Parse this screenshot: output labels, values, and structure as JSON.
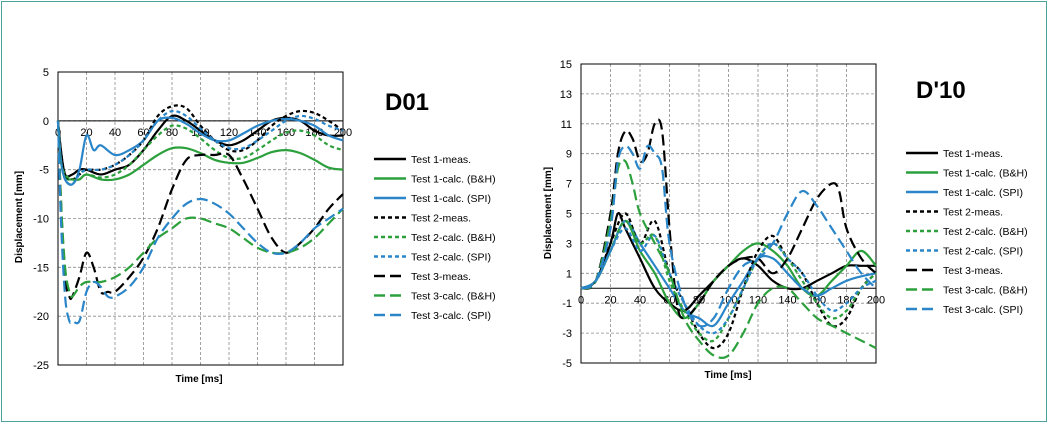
{
  "chart_data": [
    {
      "type": "line",
      "title": "D01",
      "xlabel": "Time [ms]",
      "ylabel": "Displacement [mm]",
      "xlim": [
        0,
        200
      ],
      "ylim": [
        -25,
        5
      ],
      "xticks": [
        0,
        20,
        40,
        60,
        80,
        100,
        120,
        140,
        160,
        180,
        200
      ],
      "yticks": [
        5,
        0,
        -5,
        -10,
        -15,
        -20,
        -25
      ],
      "grid": true,
      "legend_position": "right",
      "series": [
        {
          "name": "Test 1-meas.",
          "color": "#000000",
          "dash": "solid",
          "x": [
            0,
            2,
            5,
            10,
            15,
            20,
            30,
            40,
            50,
            60,
            70,
            80,
            90,
            100,
            110,
            120,
            130,
            140,
            150,
            160,
            170,
            180,
            190,
            200
          ],
          "y": [
            0,
            -3,
            -5.5,
            -5.5,
            -5,
            -5,
            -5.5,
            -5,
            -4.5,
            -3,
            -1,
            0.5,
            0,
            -1,
            -2,
            -2.5,
            -2,
            -1,
            0,
            0.3,
            0,
            -1,
            -1.5,
            -1.5
          ]
        },
        {
          "name": "Test 1-calc. (B&H)",
          "color": "#2ca03c",
          "dash": "solid",
          "x": [
            0,
            2,
            5,
            10,
            15,
            20,
            30,
            40,
            50,
            60,
            70,
            80,
            90,
            100,
            110,
            120,
            130,
            140,
            150,
            160,
            170,
            180,
            190,
            200
          ],
          "y": [
            0,
            -4,
            -5.8,
            -6,
            -6,
            -5.5,
            -6,
            -6,
            -5.5,
            -4.5,
            -3.5,
            -2.8,
            -2.8,
            -3.3,
            -4,
            -4.3,
            -4.3,
            -3.8,
            -3.2,
            -3,
            -3.3,
            -4,
            -4.8,
            -5
          ]
        },
        {
          "name": "Test 1-calc. (SPI)",
          "color": "#2a86c8",
          "dash": "solid",
          "x": [
            0,
            2,
            5,
            10,
            15,
            20,
            25,
            30,
            40,
            50,
            60,
            70,
            80,
            90,
            100,
            110,
            120,
            130,
            140,
            150,
            160,
            170,
            180,
            190,
            200
          ],
          "y": [
            0,
            -4,
            -6,
            -6.5,
            -5,
            -1.5,
            -3,
            -2.5,
            -3.5,
            -3,
            -2,
            0,
            0.3,
            -0.3,
            -1.3,
            -2,
            -2,
            -1.3,
            -0.5,
            0,
            0.2,
            0,
            -0.5,
            -1.5,
            -2
          ]
        },
        {
          "name": "Test 2-meas.",
          "color": "#000000",
          "dash": "short",
          "x": [
            0,
            2,
            5,
            10,
            15,
            20,
            30,
            40,
            50,
            60,
            70,
            80,
            90,
            100,
            110,
            120,
            130,
            140,
            150,
            160,
            170,
            180,
            190,
            200
          ],
          "y": [
            0,
            -3,
            -5.5,
            -6,
            -5.5,
            -5,
            -5,
            -4.5,
            -3.5,
            -2,
            0.5,
            1.5,
            1.3,
            -0.5,
            -2,
            -3,
            -3,
            -2,
            -0.5,
            0.5,
            1,
            0.8,
            0,
            -1
          ]
        },
        {
          "name": "Test 2-calc. (B&H)",
          "color": "#2ca03c",
          "dash": "short",
          "x": [
            0,
            2,
            5,
            10,
            15,
            20,
            30,
            40,
            50,
            60,
            70,
            80,
            90,
            100,
            110,
            120,
            130,
            140,
            150,
            160,
            170,
            180,
            190,
            200
          ],
          "y": [
            0,
            -4,
            -5.5,
            -6,
            -6,
            -5.5,
            -5.8,
            -5.5,
            -4.5,
            -3,
            -1.5,
            -0.5,
            -0.8,
            -1.8,
            -3,
            -3.8,
            -3.8,
            -3,
            -2,
            -1.2,
            -1,
            -1.5,
            -2.5,
            -3
          ]
        },
        {
          "name": "Test 2-calc. (SPI)",
          "color": "#2a86c8",
          "dash": "short",
          "x": [
            0,
            2,
            5,
            10,
            15,
            20,
            30,
            40,
            50,
            60,
            70,
            80,
            90,
            100,
            110,
            120,
            130,
            140,
            150,
            160,
            170,
            180,
            190,
            200
          ],
          "y": [
            0,
            -4,
            -6,
            -6.5,
            -5.5,
            -5,
            -5,
            -4.5,
            -3.5,
            -2,
            0,
            1,
            0.5,
            -0.8,
            -2,
            -2.8,
            -2.8,
            -2,
            -1,
            0,
            0.5,
            0.2,
            -0.5,
            -1
          ]
        },
        {
          "name": "Test 3-meas.",
          "color": "#000000",
          "dash": "long",
          "x": [
            0,
            2,
            5,
            8,
            10,
            15,
            20,
            25,
            30,
            35,
            40,
            50,
            60,
            70,
            80,
            90,
            100,
            110,
            120,
            130,
            140,
            150,
            160,
            170,
            180,
            190,
            200
          ],
          "y": [
            0,
            -8,
            -16,
            -18,
            -18,
            -16,
            -13.5,
            -15,
            -17.5,
            -17.5,
            -17.5,
            -16,
            -14,
            -11,
            -7,
            -4,
            -3.5,
            -3.5,
            -3.5,
            -6,
            -9,
            -12,
            -13.5,
            -12.5,
            -11,
            -9,
            -7.5
          ]
        },
        {
          "name": "Test 3-calc. (B&H)",
          "color": "#2ca03c",
          "dash": "long",
          "x": [
            0,
            2,
            5,
            8,
            10,
            15,
            20,
            30,
            40,
            50,
            60,
            70,
            80,
            90,
            100,
            110,
            120,
            130,
            140,
            150,
            160,
            170,
            180,
            190,
            200
          ],
          "y": [
            0,
            -8,
            -15,
            -17.5,
            -18,
            -17,
            -16.5,
            -16.5,
            -16,
            -15,
            -13.5,
            -12,
            -11,
            -10,
            -10,
            -10.5,
            -11,
            -12,
            -13,
            -13.5,
            -13.5,
            -13,
            -12,
            -10.5,
            -9
          ]
        },
        {
          "name": "Test 3-calc. (SPI)",
          "color": "#2a86c8",
          "dash": "long",
          "x": [
            0,
            2,
            5,
            8,
            10,
            15,
            20,
            25,
            30,
            35,
            40,
            50,
            60,
            70,
            80,
            90,
            100,
            110,
            120,
            130,
            140,
            150,
            160,
            170,
            180,
            190,
            200
          ],
          "y": [
            0,
            -10,
            -18,
            -20.5,
            -20.5,
            -20.5,
            -17.5,
            -16.5,
            -17,
            -18,
            -18,
            -17,
            -15,
            -12,
            -10,
            -8.5,
            -8,
            -8.5,
            -9.5,
            -11,
            -12.5,
            -13.5,
            -13.5,
            -12.5,
            -11,
            -10,
            -9
          ]
        }
      ]
    },
    {
      "type": "line",
      "title": "D'10",
      "xlabel": "Time [ms]",
      "ylabel": "Displacement [mm]",
      "xlim": [
        0,
        200
      ],
      "ylim": [
        -5,
        15
      ],
      "xticks": [
        0,
        20,
        40,
        60,
        80,
        100,
        120,
        140,
        160,
        180,
        200
      ],
      "yticks": [
        15,
        13,
        11,
        9,
        7,
        5,
        3,
        1,
        -1,
        -3,
        -5
      ],
      "grid": true,
      "legend_position": "right",
      "series": [
        {
          "name": "Test 1-meas.",
          "color": "#000000",
          "dash": "solid",
          "x": [
            0,
            10,
            20,
            25,
            30,
            40,
            50,
            60,
            70,
            80,
            90,
            100,
            110,
            120,
            130,
            140,
            150,
            160,
            170,
            180,
            190,
            200
          ],
          "y": [
            0,
            0.5,
            3,
            5,
            4,
            2,
            0,
            -1,
            -1.5,
            -0.5,
            0.5,
            1.5,
            2,
            1.5,
            0.5,
            0,
            0,
            0.5,
            1,
            1.5,
            1.5,
            1.5
          ]
        },
        {
          "name": "Test 1-calc. (B&H)",
          "color": "#2ca03c",
          "dash": "solid",
          "x": [
            0,
            10,
            20,
            30,
            40,
            50,
            60,
            70,
            80,
            90,
            100,
            110,
            120,
            130,
            140,
            150,
            160,
            170,
            180,
            190,
            200
          ],
          "y": [
            0,
            0.5,
            2.5,
            4.5,
            2.5,
            1,
            -1,
            -2,
            -1,
            0.5,
            1.5,
            2.5,
            3,
            2.5,
            1.5,
            0,
            -0.5,
            0.5,
            1.5,
            2.5,
            1.5
          ]
        },
        {
          "name": "Test 1-calc. (SPI)",
          "color": "#2a86c8",
          "dash": "solid",
          "x": [
            0,
            10,
            20,
            30,
            40,
            50,
            60,
            70,
            80,
            90,
            100,
            110,
            120,
            130,
            140,
            150,
            160,
            170,
            180,
            190,
            200
          ],
          "y": [
            0,
            0.5,
            2.5,
            4.5,
            3,
            1.5,
            0,
            -1.5,
            -2,
            -2.5,
            -1,
            0.5,
            2,
            2,
            1,
            0,
            -0.5,
            0,
            0.5,
            0.8,
            1
          ]
        },
        {
          "name": "Test 2-meas.",
          "color": "#000000",
          "dash": "short",
          "x": [
            0,
            10,
            20,
            30,
            40,
            50,
            60,
            70,
            80,
            90,
            100,
            110,
            120,
            130,
            140,
            150,
            160,
            170,
            180,
            190,
            200
          ],
          "y": [
            0,
            0.5,
            3,
            5,
            3,
            4.5,
            1,
            -1,
            -3,
            -4,
            -3,
            0,
            2.5,
            3.5,
            2,
            1,
            -1,
            -2.5,
            -2,
            0,
            1
          ]
        },
        {
          "name": "Test 2-calc. (B&H)",
          "color": "#2ca03c",
          "dash": "short",
          "x": [
            0,
            10,
            20,
            30,
            40,
            50,
            60,
            70,
            80,
            90,
            100,
            110,
            120,
            130,
            140,
            150,
            160,
            170,
            180,
            190,
            200
          ],
          "y": [
            0,
            0.5,
            2.5,
            4.5,
            3,
            3.5,
            0.5,
            -1.5,
            -3,
            -3.5,
            -2,
            0,
            2,
            3,
            2,
            0.5,
            -1,
            -2,
            -1.5,
            0,
            1
          ]
        },
        {
          "name": "Test 2-calc. (SPI)",
          "color": "#2a86c8",
          "dash": "short",
          "x": [
            0,
            10,
            20,
            30,
            40,
            50,
            60,
            70,
            80,
            90,
            100,
            110,
            120,
            130,
            140,
            150,
            160,
            170,
            180,
            190,
            200
          ],
          "y": [
            0,
            0.5,
            2.5,
            4,
            2.5,
            3.5,
            1,
            -1,
            -2.5,
            -3,
            -2,
            0,
            2,
            3,
            2,
            1,
            -0.5,
            -1.5,
            -1,
            0,
            0.5
          ]
        },
        {
          "name": "Test 3-meas.",
          "color": "#000000",
          "dash": "long",
          "x": [
            0,
            10,
            20,
            25,
            30,
            35,
            40,
            45,
            50,
            55,
            60,
            65,
            70,
            80,
            90,
            100,
            110,
            120,
            130,
            140,
            150,
            160,
            170,
            175,
            180,
            190,
            200
          ],
          "y": [
            0,
            0.5,
            5,
            9,
            10.5,
            10,
            8.5,
            9,
            11,
            10.5,
            4,
            -1,
            -2,
            -1,
            0.5,
            1.5,
            2,
            2,
            1,
            2,
            4,
            6,
            7,
            6.5,
            4,
            2,
            1
          ]
        },
        {
          "name": "Test 3-calc. (B&H)",
          "color": "#2ca03c",
          "dash": "long",
          "x": [
            0,
            10,
            20,
            25,
            30,
            35,
            40,
            50,
            60,
            70,
            80,
            90,
            100,
            110,
            120,
            130,
            140,
            150,
            160,
            170,
            180,
            190,
            200
          ],
          "y": [
            0,
            0.5,
            4.5,
            8,
            8.5,
            7,
            5,
            3,
            1,
            -2,
            -3.5,
            -4.5,
            -4.5,
            -3,
            -1,
            0,
            0,
            -1,
            -2,
            -2.5,
            -3,
            -3.5,
            -4
          ]
        },
        {
          "name": "Test 3-calc. (SPI)",
          "color": "#2a86c8",
          "dash": "long",
          "x": [
            0,
            10,
            20,
            25,
            30,
            35,
            40,
            45,
            50,
            55,
            60,
            70,
            80,
            90,
            100,
            110,
            120,
            130,
            140,
            150,
            160,
            170,
            180,
            190,
            200
          ],
          "y": [
            0,
            0.5,
            4,
            8.5,
            9.5,
            9,
            8,
            9.5,
            9,
            8,
            3,
            -1,
            -2.5,
            -2,
            0,
            1.5,
            2,
            3,
            5,
            6.5,
            5.5,
            4,
            2.5,
            1,
            0
          ]
        }
      ]
    }
  ]
}
